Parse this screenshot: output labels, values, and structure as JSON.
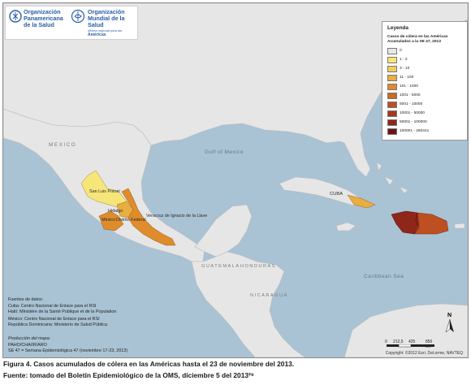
{
  "logo": {
    "org1_line1": "Organización",
    "org1_line2": "Panamericana",
    "org1_line3": "de la Salud",
    "org2_line1": "Organización",
    "org2_line2": "Mundial de la Salud",
    "org2_line3": "oficina regional para las",
    "org2_line4": "Américas"
  },
  "legend": {
    "title": "Leyenda",
    "subtitle_line1": "Casos de cólera en las Américas",
    "subtitle_line2": "Acumulados a la SE 47, 2013",
    "classes": [
      {
        "label": "0",
        "color": "#e8e8e8"
      },
      {
        "label": "1 - 2",
        "color": "#f6e67a"
      },
      {
        "label": "3 - 10",
        "color": "#f3cf5a"
      },
      {
        "label": "11 - 100",
        "color": "#e9ad40"
      },
      {
        "label": "101 - 1000",
        "color": "#de8c2c"
      },
      {
        "label": "1001 - 5000",
        "color": "#cf6a25"
      },
      {
        "label": "5001 - 10000",
        "color": "#bd4f20"
      },
      {
        "label": "10001 - 50000",
        "color": "#a8381c"
      },
      {
        "label": "50001 - 100000",
        "color": "#8e2619"
      },
      {
        "label": "100001 - 260441",
        "color": "#6c1414"
      }
    ]
  },
  "places": {
    "san_luis_potosi": "San Luis Potosí",
    "hidalgo": "Hidalgo",
    "mexico": "México",
    "distrito_federal": "Distrito Federal",
    "veracruz": "Veracruz de Ignacio de la Llave",
    "cuba": "CUBA",
    "mexico_country": "MEXICO",
    "guatemala": "GUATEMALA",
    "honduras": "HONDURAS",
    "nicaragua": "NICARAGUA",
    "gulf": "Gulf of Mexico",
    "caribbean": "Caribbean Sea"
  },
  "sources": {
    "heading": "Fuentes de datos:",
    "line1": "Cuba: Centro Nacional de Enlace para el RSI",
    "line2": "Haití: Ministère de la Santé Publique et de la Population",
    "line3": "México: Centro Nacional de Enlace para el RSI",
    "line4": "República Dominicana: Ministerio de Salud Pública",
    "prod_heading": "Producción del mapa:",
    "prod_line1": "PAHO/CHA/IR/ARO",
    "prod_line2": "SE 47 = Semana Epidemiológica 47 (noviembre 17-23, 2013)"
  },
  "scale": {
    "t0": "0",
    "t1": "212,5",
    "t2": "425",
    "t3": "850 km"
  },
  "north": "N",
  "copyright": "Copyright: ©2012 Esri, DeLorme, NAVTEQ",
  "caption": {
    "line1": "Figura 4. Casos acumulados de cólera en las Américas hasta el 23 de noviembre del 2013.",
    "line2": "Fuente: tomado del Boletín Epidemiológico de la OMS, diciembre 5 del 2013²⁹"
  }
}
